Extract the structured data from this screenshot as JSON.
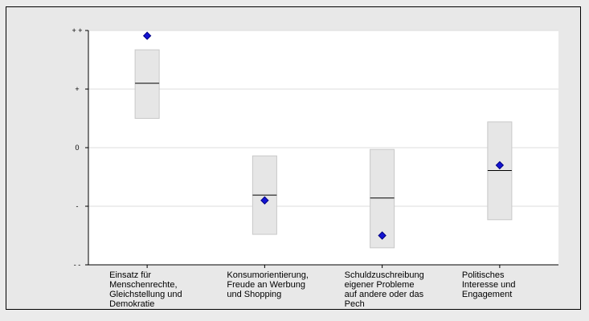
{
  "chart_data": {
    "type": "boxplot",
    "y_axis": {
      "ticks": [
        {
          "label": "- -",
          "value": -2
        },
        {
          "label": "-",
          "value": -1
        },
        {
          "label": "0",
          "value": 0
        },
        {
          "label": "+",
          "value": 1
        },
        {
          "label": "+ +",
          "value": 2
        }
      ],
      "ylim": [
        -2,
        2
      ]
    },
    "grid": true,
    "categories": [
      {
        "label_lines": [
          "Einsatz für",
          "Menschenrechte,",
          "Gleichstellung und",
          "Demokratie"
        ],
        "box_low": 0.5,
        "box_high": 1.67,
        "median": 1.1,
        "point": 1.91
      },
      {
        "label_lines": [
          "Konsumorientierung,",
          "Freude an Werbung",
          "und Shopping"
        ],
        "box_low": -1.48,
        "box_high": -0.14,
        "median": -0.81,
        "point": -0.9
      },
      {
        "label_lines": [
          "Schuldzuschreibung",
          "eigener Probleme",
          "auf andere oder das",
          "Pech"
        ],
        "box_low": -1.71,
        "box_high": -0.03,
        "median": -0.86,
        "point": -1.5
      },
      {
        "label_lines": [
          "Politisches",
          "Interesse und",
          "Engagement"
        ],
        "box_low": -1.23,
        "box_high": 0.44,
        "median": -0.39,
        "point": -0.3
      }
    ],
    "colors": {
      "box_fill": "#e6e6e6",
      "box_stroke": "#c8c8c8",
      "median": "#000000",
      "point": "#1414d2",
      "point_stroke": "#000080",
      "grid": "#dcdcdc",
      "plot_bg": "#ffffff"
    }
  }
}
